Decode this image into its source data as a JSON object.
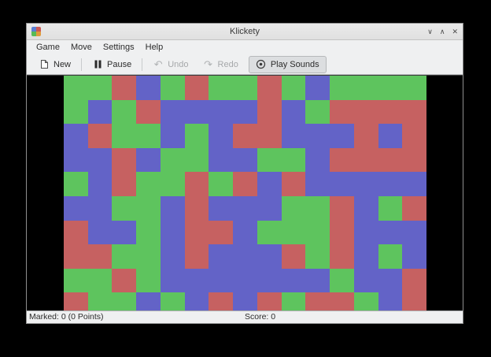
{
  "window": {
    "title": "Klickety",
    "controls": {
      "minimize": "∨",
      "maximize": "∧",
      "close": "✕"
    },
    "app_icon_colors": [
      "#5b7fd4",
      "#cc5a55",
      "#57bb57",
      "#e09a3c"
    ]
  },
  "menu": {
    "items": [
      {
        "label": "Game"
      },
      {
        "label": "Move"
      },
      {
        "label": "Settings"
      },
      {
        "label": "Help"
      }
    ]
  },
  "toolbar": {
    "new_label": "New",
    "pause_label": "Pause",
    "undo_label": "Undo",
    "redo_label": "Redo",
    "play_sounds_label": "Play Sounds"
  },
  "board": {
    "rows": 10,
    "cols": 15,
    "colors": {
      "G": "#5ec45e",
      "R": "#c66161",
      "B": "#6363c7"
    },
    "grid": [
      "GGRBGRGGRGBGGGG",
      "GBGRBBBBRBGRRRR",
      "BRGGBGBRRBBBRBR",
      "BBRBGGBBGGBRRRR",
      "GBRGGRGRBRBBBBB",
      "BBGGBRBBBGGRBGR",
      "RBBGBRRBGGGRBBB",
      "RRGGBRBBBRGRBGB",
      "GGRGBBBBBBBGBBR",
      "RGGBGBRBRGRRGBR"
    ]
  },
  "statusbar": {
    "marked": "Marked: 0 (0 Points)",
    "score": "Score: 0"
  }
}
